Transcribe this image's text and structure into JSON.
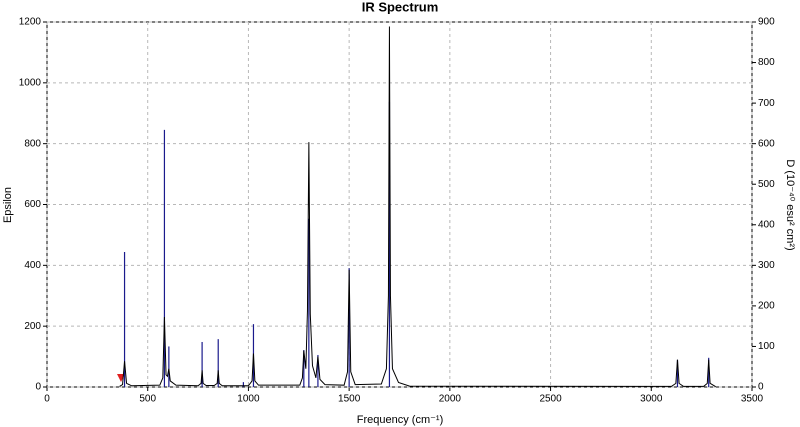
{
  "chart_data": {
    "type": "spectrum",
    "title": "IR Spectrum",
    "x_label": "Frequency (cm⁻¹)",
    "y_label": "Epsilon",
    "y2_label": "D (10⁻⁴⁰ esu² cm²)",
    "xlim": [
      0,
      3500
    ],
    "xticks": [
      0,
      500,
      1000,
      1500,
      2000,
      2500,
      3000,
      3500
    ],
    "ylim": [
      0,
      1200
    ],
    "yticks": [
      0,
      200,
      400,
      600,
      800,
      1000,
      1200
    ],
    "y2lim": [
      0,
      900
    ],
    "y2ticks": [
      0,
      100,
      200,
      300,
      400,
      500,
      600,
      700,
      800,
      900
    ],
    "grid": true,
    "series": [
      {
        "type": "line",
        "color": "#000000",
        "x": [
          360,
          375,
          385,
          395,
          420,
          560,
          575,
          583,
          591,
          598,
          605,
          612,
          640,
          750,
          765,
          770,
          775,
          790,
          830,
          845,
          850,
          855,
          870,
          1000,
          1018,
          1025,
          1032,
          1050,
          1255,
          1268,
          1275,
          1285,
          1293,
          1300,
          1307,
          1318,
          1335,
          1345,
          1355,
          1380,
          1475,
          1492,
          1500,
          1508,
          1530,
          1660,
          1685,
          1695,
          1700,
          1705,
          1715,
          1745,
          1800,
          3100,
          3122,
          3130,
          3138,
          3160,
          3260,
          3278,
          3285,
          3292,
          3320
        ],
        "values": [
          2,
          8,
          85,
          12,
          4,
          6,
          30,
          230,
          40,
          35,
          60,
          20,
          6,
          4,
          12,
          55,
          12,
          5,
          5,
          12,
          55,
          12,
          4,
          4,
          20,
          110,
          20,
          6,
          6,
          30,
          120,
          60,
          250,
          805,
          240,
          70,
          30,
          100,
          25,
          8,
          6,
          50,
          385,
          50,
          8,
          10,
          60,
          300,
          1185,
          300,
          60,
          15,
          3,
          2,
          12,
          90,
          12,
          2,
          2,
          12,
          90,
          12,
          1
        ]
      },
      {
        "type": "stick",
        "axis": "y2",
        "color": "#1a1a8c",
        "x": [
          385,
          583,
          605,
          770,
          850,
          975,
          1025,
          1275,
          1300,
          1345,
          1500,
          1700,
          3130,
          3285
        ],
        "values": [
          333,
          634,
          100,
          111,
          118,
          12,
          155,
          91,
          415,
          79,
          293,
          703,
          67,
          72
        ]
      }
    ]
  }
}
